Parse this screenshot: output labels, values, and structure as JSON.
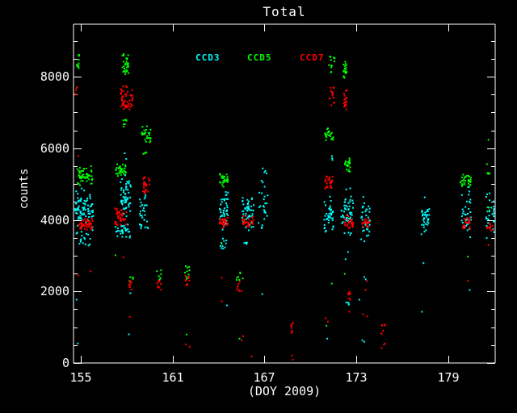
{
  "title": "Total",
  "colors": {
    "background": "#000000",
    "foreground": "#ffffff"
  },
  "axes": {
    "xlabel": "(DOY 2009)",
    "ylabel": "counts",
    "x_ticks": [
      155,
      161,
      167,
      173,
      179
    ],
    "y_ticks": [
      0,
      2000,
      4000,
      6000,
      8000
    ],
    "x_range": [
      154.5,
      182.09
    ],
    "y_range": [
      0,
      9465
    ],
    "y_minor_step": 500,
    "grid": false
  },
  "legend": [
    {
      "label": "CCD3",
      "color": "#00ffff"
    },
    {
      "label": "CCD5",
      "color": "#00ff00"
    },
    {
      "label": "CCD7",
      "color": "#ff0000"
    }
  ],
  "chart_data": {
    "type": "scatter",
    "title": "Total",
    "xlabel": "(DOY 2009)",
    "ylabel": "counts",
    "series_colors": {
      "CCD3": "#00ffff",
      "CCD5": "#00ff00",
      "CCD7": "#ff0000"
    },
    "cluster_format": [
      "series",
      "doy_min",
      "doy_max",
      "counts_min",
      "counts_max",
      "n_points"
    ],
    "clusters": [
      [
        "CCD5",
        154.62,
        154.88,
        8150,
        8620,
        10
      ],
      [
        "CCD7",
        154.62,
        154.8,
        7480,
        7710,
        5
      ],
      [
        "CCD5",
        154.72,
        155.75,
        4870,
        5550,
        55
      ],
      [
        "CCD3",
        154.56,
        155.8,
        3650,
        5000,
        85
      ],
      [
        "CCD7",
        154.82,
        155.75,
        3690,
        4080,
        48
      ],
      [
        "CCD3",
        154.66,
        155.6,
        3280,
        3650,
        16
      ],
      [
        "CCD5",
        157.68,
        158.12,
        8000,
        8730,
        32
      ],
      [
        "CCD7",
        157.58,
        158.38,
        6980,
        7780,
        52
      ],
      [
        "CCD5",
        157.68,
        158.0,
        6570,
        6870,
        7
      ],
      [
        "CCD5",
        157.25,
        157.97,
        5170,
        5640,
        36
      ],
      [
        "CCD3",
        157.58,
        158.25,
        3930,
        5330,
        55
      ],
      [
        "CCD7",
        157.2,
        157.97,
        3790,
        4420,
        42
      ],
      [
        "CCD3",
        157.2,
        158.25,
        3450,
        3930,
        32
      ],
      [
        "CCD3",
        158.82,
        159.0,
        3760,
        3890,
        4
      ],
      [
        "CCD5",
        158.98,
        159.55,
        6075,
        6690,
        28
      ],
      [
        "CCD5",
        159.02,
        159.3,
        5730,
        5890,
        4
      ],
      [
        "CCD7",
        159.02,
        159.55,
        4715,
        5240,
        28
      ],
      [
        "CCD3",
        158.8,
        159.3,
        4100,
        4715,
        18
      ],
      [
        "CCD3",
        158.85,
        159.45,
        3750,
        4100,
        8
      ],
      [
        "CCD5",
        158.1,
        158.4,
        2290,
        2430,
        5
      ],
      [
        "CCD7",
        158.12,
        158.4,
        2040,
        2340,
        9
      ],
      [
        "CCD5",
        159.95,
        160.25,
        2290,
        2610,
        7
      ],
      [
        "CCD7",
        159.95,
        160.25,
        2040,
        2340,
        9
      ],
      [
        "CCD5",
        161.7,
        162.1,
        2330,
        2720,
        9
      ],
      [
        "CCD7",
        161.74,
        162.1,
        2150,
        2450,
        9
      ],
      [
        "CCD5",
        164.05,
        164.6,
        4870,
        5330,
        30
      ],
      [
        "CCD3",
        164.05,
        164.62,
        3590,
        4830,
        42
      ],
      [
        "CCD7",
        164.05,
        164.6,
        3740,
        4100,
        32
      ],
      [
        "CCD3",
        164.1,
        164.55,
        3090,
        3630,
        10
      ],
      [
        "CCD3",
        165.5,
        166.3,
        3590,
        4880,
        45
      ],
      [
        "CCD7",
        165.55,
        166.28,
        3740,
        4200,
        28
      ],
      [
        "CCD3",
        165.65,
        165.95,
        3310,
        3470,
        4
      ],
      [
        "CCD5",
        165.15,
        165.58,
        2290,
        2570,
        7
      ],
      [
        "CCD7",
        165.18,
        165.58,
        2000,
        2290,
        8
      ],
      [
        "CCD3",
        166.6,
        167.2,
        3590,
        5510,
        28
      ],
      [
        "CCD7",
        168.68,
        168.87,
        815,
        1160,
        9
      ],
      [
        "CCD5",
        171.2,
        171.6,
        8050,
        8570,
        12
      ],
      [
        "CCD7",
        171.2,
        171.6,
        7165,
        7705,
        16
      ],
      [
        "CCD5",
        170.95,
        171.5,
        6145,
        6645,
        22
      ],
      [
        "CCD7",
        170.95,
        171.45,
        4785,
        5240,
        26
      ],
      [
        "CCD3",
        170.9,
        171.5,
        3425,
        4715,
        40
      ],
      [
        "CCD3",
        171.2,
        171.45,
        5625,
        5785,
        3
      ],
      [
        "CCD5",
        172.15,
        172.38,
        7960,
        8505,
        20
      ],
      [
        "CCD7",
        172.18,
        172.42,
        6985,
        7730,
        20
      ],
      [
        "CCD5",
        172.25,
        172.6,
        5285,
        5805,
        22
      ],
      [
        "CCD3",
        172.0,
        172.8,
        3425,
        4945,
        52
      ],
      [
        "CCD7",
        172.2,
        172.8,
        3695,
        4150,
        26
      ],
      [
        "CCD7",
        172.4,
        172.62,
        1770,
        2180,
        10
      ],
      [
        "CCD3",
        172.3,
        172.52,
        1585,
        1725,
        4
      ],
      [
        "CCD3",
        173.3,
        173.9,
        3355,
        4670,
        36
      ],
      [
        "CCD7",
        173.35,
        173.85,
        3740,
        4080,
        20
      ],
      [
        "CCD7",
        174.6,
        174.9,
        815,
        1135,
        7
      ],
      [
        "CCD7",
        174.65,
        174.9,
        410,
        565,
        3
      ],
      [
        "CCD3",
        177.2,
        177.8,
        3425,
        4715,
        35
      ],
      [
        "CCD5",
        179.8,
        180.5,
        4785,
        5355,
        30
      ],
      [
        "CCD3",
        179.9,
        180.5,
        3400,
        4945,
        35
      ],
      [
        "CCD7",
        179.95,
        180.45,
        3695,
        4105,
        20
      ],
      [
        "CCD3",
        181.5,
        182.04,
        3425,
        4990,
        30
      ],
      [
        "CCD7",
        181.5,
        181.95,
        3695,
        3925,
        12
      ],
      [
        "CCD5",
        181.55,
        181.85,
        5215,
        5355,
        4
      ]
    ],
    "single_format": [
      "series",
      "doy",
      "counts"
    ],
    "singles": [
      [
        "CCD7",
        154.8,
        2450
      ],
      [
        "CCD7",
        155.62,
        2560
      ],
      [
        "CCD3",
        154.7,
        1770
      ],
      [
        "CCD3",
        154.78,
        545
      ],
      [
        "CCD7",
        154.82,
        5790
      ],
      [
        "CCD5",
        157.25,
        3010
      ],
      [
        "CCD7",
        157.76,
        2950
      ],
      [
        "CCD3",
        158.22,
        1950
      ],
      [
        "CCD7",
        158.18,
        1290
      ],
      [
        "CCD3",
        158.12,
        800
      ],
      [
        "CCD3",
        157.85,
        5860
      ],
      [
        "CCD3",
        157.95,
        5700
      ],
      [
        "CCD5",
        161.9,
        795
      ],
      [
        "CCD7",
        161.85,
        520
      ],
      [
        "CCD7",
        162.1,
        455
      ],
      [
        "CCD7",
        164.2,
        2380
      ],
      [
        "CCD7",
        164.2,
        1725
      ],
      [
        "CCD3",
        164.55,
        1610
      ],
      [
        "CCD5",
        164.2,
        3330
      ],
      [
        "CCD5",
        165.36,
        680
      ],
      [
        "CCD7",
        165.6,
        750
      ],
      [
        "CCD7",
        166.15,
        180
      ],
      [
        "CCD3",
        166.85,
        1925
      ],
      [
        "CCD7",
        165.5,
        635
      ],
      [
        "CCD7",
        168.8,
        205
      ],
      [
        "CCD7",
        168.85,
        95
      ],
      [
        "CCD7",
        171.0,
        1250
      ],
      [
        "CCD7",
        171.15,
        1155
      ],
      [
        "CCD3",
        171.1,
        680
      ],
      [
        "CCD5",
        171.05,
        1040
      ],
      [
        "CCD5",
        171.4,
        2220
      ],
      [
        "CCD7",
        172.56,
        1430
      ],
      [
        "CCD3",
        172.3,
        2900
      ],
      [
        "CCD3",
        172.46,
        3100
      ],
      [
        "CCD5",
        172.25,
        2490
      ],
      [
        "CCD3",
        173.52,
        2400
      ],
      [
        "CCD3",
        173.62,
        2335
      ],
      [
        "CCD7",
        173.7,
        2290
      ],
      [
        "CCD7",
        173.6,
        2040
      ],
      [
        "CCD3",
        173.2,
        1770
      ],
      [
        "CCD7",
        173.45,
        1360
      ],
      [
        "CCD7",
        173.72,
        1300
      ],
      [
        "CCD3",
        173.4,
        635
      ],
      [
        "CCD3",
        173.52,
        590
      ],
      [
        "CCD3",
        177.4,
        2790
      ],
      [
        "CCD3",
        177.3,
        1430
      ],
      [
        "CCD5",
        180.3,
        2970
      ],
      [
        "CCD7",
        180.3,
        2290
      ],
      [
        "CCD3",
        180.42,
        2040
      ],
      [
        "CCD5",
        181.65,
        6235
      ],
      [
        "CCD5",
        181.55,
        5555
      ],
      [
        "CCD5",
        181.6,
        4350
      ],
      [
        "CCD5",
        181.72,
        4265
      ],
      [
        "CCD7",
        181.65,
        3290
      ]
    ]
  }
}
